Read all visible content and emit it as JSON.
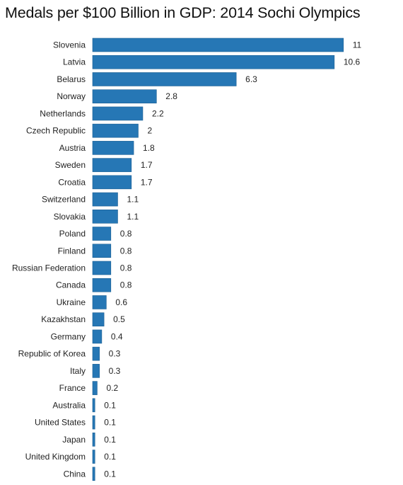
{
  "chart_data": {
    "type": "bar",
    "orientation": "horizontal",
    "title": "Medals per $100 Billion in GDP: 2014 Sochi Olympics",
    "xlabel": "",
    "ylabel": "",
    "grid": false,
    "bar_color": "#2677b5",
    "categories": [
      "Slovenia",
      "Latvia",
      "Belarus",
      "Norway",
      "Netherlands",
      "Czech Republic",
      "Austria",
      "Sweden",
      "Croatia",
      "Switzerland",
      "Slovakia",
      "Poland",
      "Finland",
      "Russian Federation",
      "Canada",
      "Ukraine",
      "Kazakhstan",
      "Germany",
      "Republic of Korea",
      "Italy",
      "France",
      "Australia",
      "United States",
      "Japan",
      "United Kingdom",
      "China"
    ],
    "values": [
      11,
      10.6,
      6.3,
      2.8,
      2.2,
      2,
      1.8,
      1.7,
      1.7,
      1.1,
      1.1,
      0.8,
      0.8,
      0.8,
      0.8,
      0.6,
      0.5,
      0.4,
      0.3,
      0.3,
      0.2,
      0.1,
      0.1,
      0.1,
      0.1,
      0.1
    ],
    "value_labels": [
      "11",
      "10.6",
      "6.3",
      "2.8",
      "2.2",
      "2",
      "1.8",
      "1.7",
      "1.7",
      "1.1",
      "1.1",
      "0.8",
      "0.8",
      "0.8",
      "0.8",
      "0.6",
      "0.5",
      "0.4",
      "0.3",
      "0.3",
      "0.2",
      "0.1",
      "0.1",
      "0.1",
      "0.1",
      "0.1"
    ]
  }
}
